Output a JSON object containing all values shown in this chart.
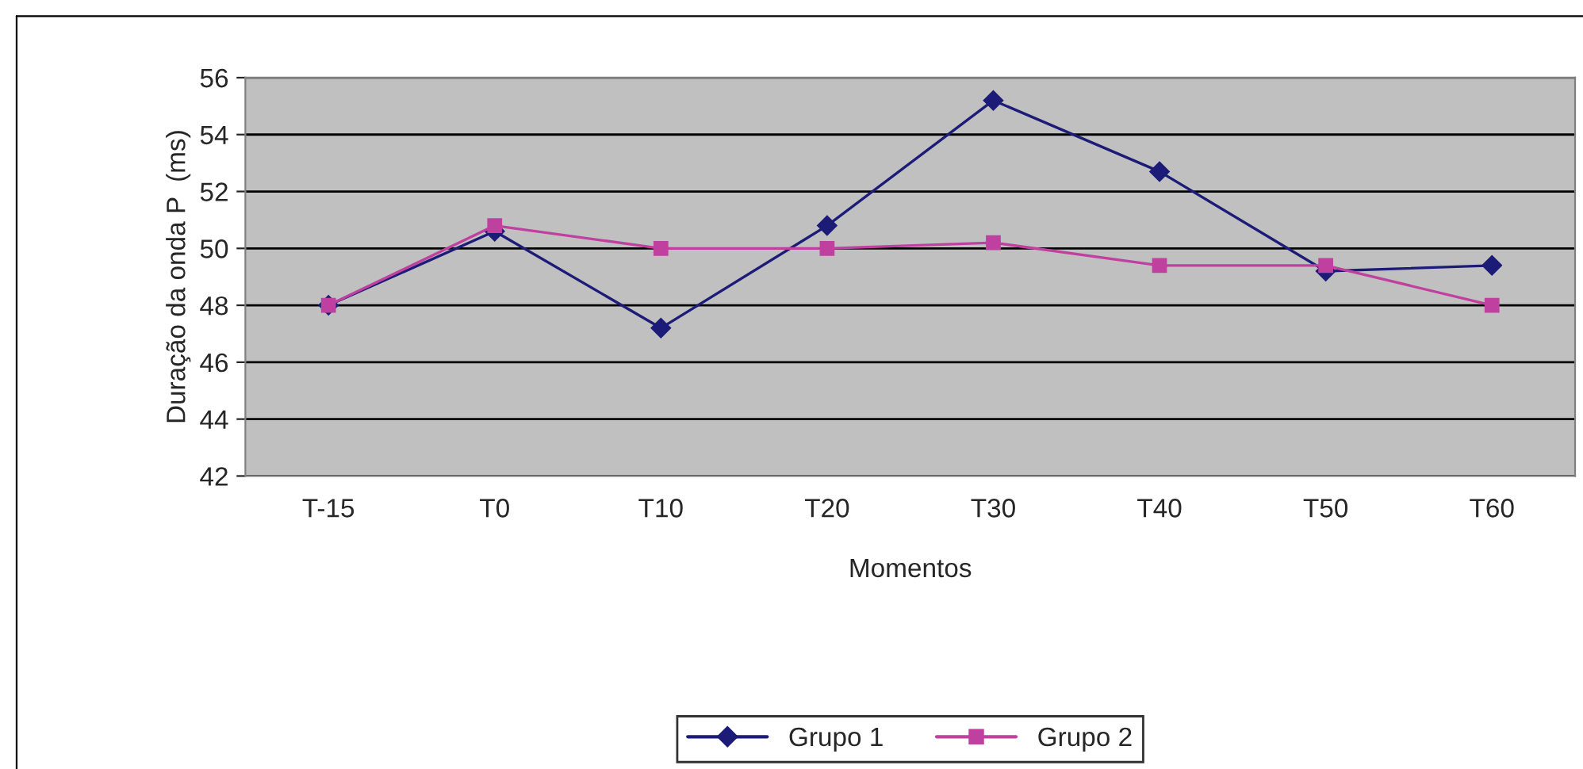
{
  "chart_data": {
    "type": "line",
    "xlabel": "Momentos",
    "ylabel": "Duração da onda P  (ms)",
    "categories": [
      "T-15",
      "T0",
      "T10",
      "T20",
      "T30",
      "T40",
      "T50",
      "T60"
    ],
    "series": [
      {
        "name": "Grupo 1",
        "color": "#1c1c78",
        "marker": "diamond",
        "values": [
          48.0,
          50.6,
          47.2,
          50.8,
          55.2,
          52.7,
          49.2,
          49.4
        ]
      },
      {
        "name": "Grupo 2",
        "color": "#c040a0",
        "marker": "square",
        "values": [
          48.0,
          50.8,
          50.0,
          50.0,
          50.2,
          49.4,
          49.4,
          48.0
        ]
      }
    ],
    "ylim": [
      42,
      56
    ],
    "yticks": [
      42,
      44,
      46,
      48,
      50,
      52,
      54,
      56
    ],
    "grid": "y",
    "legend": "bottom",
    "line_style": "solid"
  }
}
